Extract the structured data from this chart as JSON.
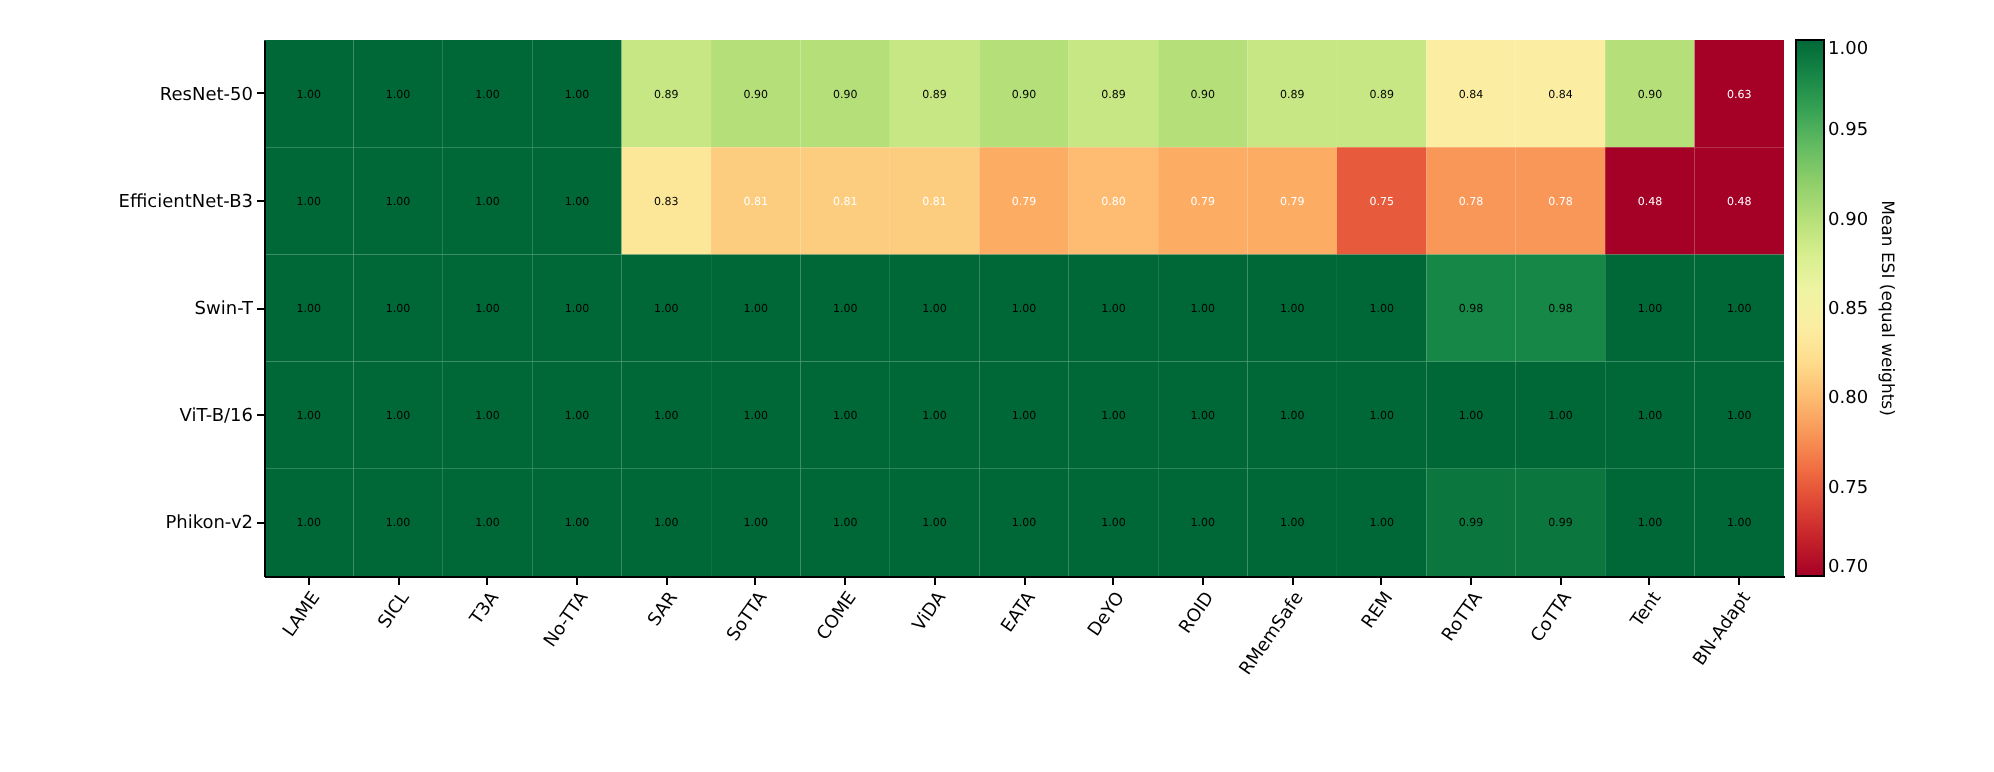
{
  "chart_data": {
    "type": "heatmap",
    "clabel": "Mean ESI (equal weights)",
    "categories": [
      "LAME",
      "SICL",
      "T3A",
      "No-TTA",
      "SAR",
      "SoTTA",
      "COME",
      "ViDA",
      "EATA",
      "DeYO",
      "ROID",
      "RMemSafe",
      "REM",
      "RoTTA",
      "CoTTA",
      "Tent",
      "BN-Adapt"
    ],
    "y_categories": [
      "ResNet-50",
      "EfficientNet-B3",
      "Swin-T",
      "ViT-B/16",
      "Phikon-v2"
    ],
    "cells": [
      [
        1.0,
        1.0,
        1.0,
        1.0,
        0.89,
        0.9,
        0.9,
        0.89,
        0.9,
        0.89,
        0.9,
        0.89,
        0.89,
        0.84,
        0.84,
        0.9,
        0.63
      ],
      [
        1.0,
        1.0,
        1.0,
        1.0,
        0.83,
        0.81,
        0.81,
        0.81,
        0.79,
        0.8,
        0.79,
        0.79,
        0.75,
        0.78,
        0.78,
        0.48,
        0.48
      ],
      [
        1.0,
        1.0,
        1.0,
        1.0,
        1.0,
        1.0,
        1.0,
        1.0,
        1.0,
        1.0,
        1.0,
        1.0,
        1.0,
        0.98,
        0.98,
        1.0,
        1.0
      ],
      [
        1.0,
        1.0,
        1.0,
        1.0,
        1.0,
        1.0,
        1.0,
        1.0,
        1.0,
        1.0,
        1.0,
        1.0,
        1.0,
        1.0,
        1.0,
        1.0,
        1.0
      ],
      [
        1.0,
        1.0,
        1.0,
        1.0,
        1.0,
        1.0,
        1.0,
        1.0,
        1.0,
        1.0,
        1.0,
        1.0,
        1.0,
        0.99,
        0.99,
        1.0,
        1.0
      ]
    ],
    "cell_labels": [
      [
        "1.00",
        "1.00",
        "1.00",
        "1.00",
        "0.89",
        "0.90",
        "0.90",
        "0.89",
        "0.90",
        "0.89",
        "0.90",
        "0.89",
        "0.89",
        "0.84",
        "0.84",
        "0.90",
        "0.63"
      ],
      [
        "1.00",
        "1.00",
        "1.00",
        "1.00",
        "0.83",
        "0.81",
        "0.81",
        "0.81",
        "0.79",
        "0.80",
        "0.79",
        "0.79",
        "0.75",
        "0.78",
        "0.78",
        "0.48",
        "0.48"
      ],
      [
        "1.00",
        "1.00",
        "1.00",
        "1.00",
        "1.00",
        "1.00",
        "1.00",
        "1.00",
        "1.00",
        "1.00",
        "1.00",
        "1.00",
        "1.00",
        "0.98",
        "0.98",
        "1.00",
        "1.00"
      ],
      [
        "1.00",
        "1.00",
        "1.00",
        "1.00",
        "1.00",
        "1.00",
        "1.00",
        "1.00",
        "1.00",
        "1.00",
        "1.00",
        "1.00",
        "1.00",
        "1.00",
        "1.00",
        "1.00",
        "1.00"
      ],
      [
        "1.00",
        "1.00",
        "1.00",
        "1.00",
        "1.00",
        "1.00",
        "1.00",
        "1.00",
        "1.00",
        "1.00",
        "1.00",
        "1.00",
        "1.00",
        "0.99",
        "0.99",
        "1.00",
        "1.00"
      ]
    ],
    "clim": [
      0.7,
      1.0
    ],
    "cticks": [
      {
        "value": 0.7,
        "label": "0.70"
      },
      0.75,
      {
        "value": 0.8,
        "label": "0.80"
      },
      0.85,
      {
        "value": 0.9,
        "label": "0.90"
      },
      0.95,
      {
        "value": 1.0,
        "label": "1.00"
      }
    ]
  }
}
